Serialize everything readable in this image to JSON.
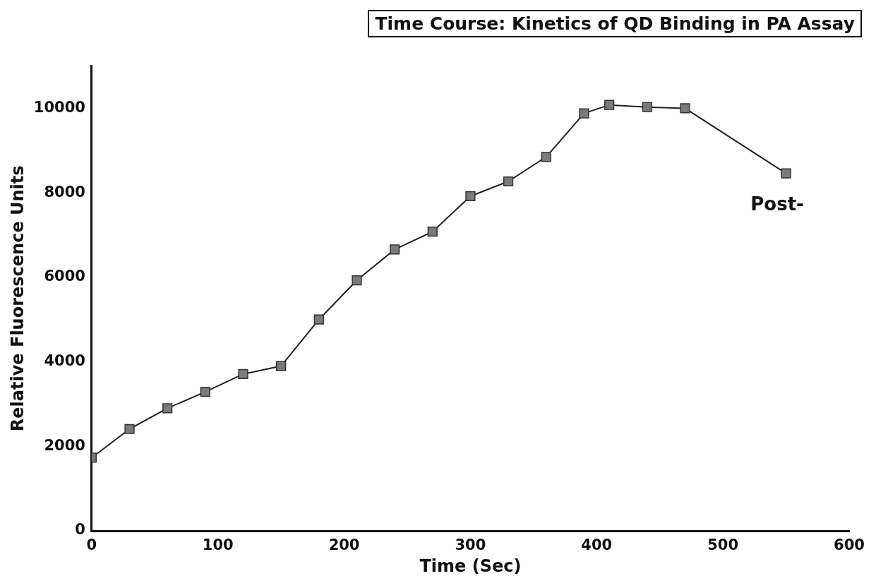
{
  "chart_data": {
    "type": "line",
    "title": "Time Course: Kinetics of QD Binding in PA Assay",
    "xlabel": "Time (Sec)",
    "ylabel": "Relative Fluorescence Units",
    "x": [
      0,
      30,
      60,
      90,
      120,
      150,
      180,
      210,
      240,
      270,
      300,
      330,
      360,
      390,
      410,
      440,
      470,
      550
    ],
    "series": [
      {
        "color": "#7a7a7a",
        "values": [
          1730,
          2410,
          2900,
          3290,
          3710,
          3900,
          5000,
          5930,
          6660,
          7080,
          7920,
          8270,
          8850,
          9880,
          10080,
          10030,
          10000,
          8460
        ]
      }
    ],
    "xlim": [
      0,
      600
    ],
    "xticks": [
      0,
      100,
      200,
      300,
      400,
      500,
      600
    ],
    "ylim": [
      0,
      11000
    ],
    "yticks": [
      0,
      2000,
      4000,
      6000,
      8000,
      10000
    ],
    "grid": false,
    "legend": false,
    "marker": "square",
    "line_style": "solid",
    "annotations": [
      "Post-"
    ]
  }
}
